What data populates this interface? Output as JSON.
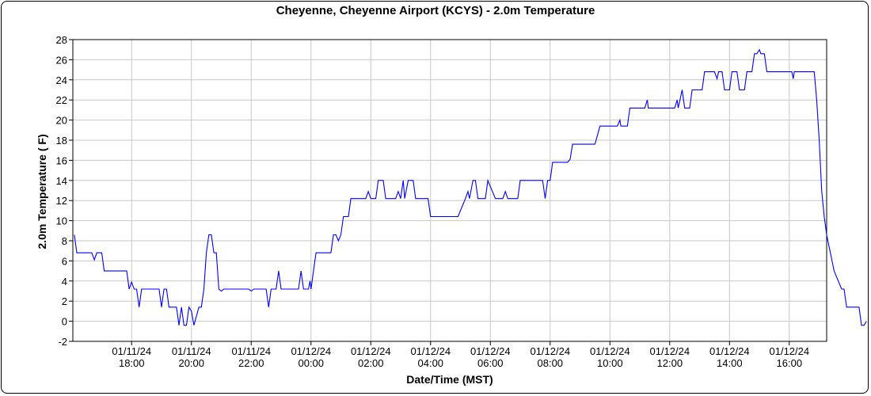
{
  "chart_data": {
    "type": "line",
    "title": "Cheyenne, Cheyenne Airport (KCYS) - 2.0m Temperature",
    "xlabel": "Date/Time (MST)",
    "ylabel": "2.0m Temperature ( F)",
    "ylim": [
      -2,
      28
    ],
    "yticks": [
      -2,
      0,
      2,
      4,
      6,
      8,
      10,
      12,
      14,
      16,
      18,
      20,
      22,
      24,
      26,
      28
    ],
    "xlim": [
      "01/11/24 16:02",
      "01/12/24 17:15"
    ],
    "xticks": [
      {
        "date": "01/11/24",
        "time": "18:00",
        "at": "01/11/24 18:00"
      },
      {
        "date": "01/11/24",
        "time": "20:00",
        "at": "01/11/24 20:00"
      },
      {
        "date": "01/11/24",
        "time": "22:00",
        "at": "01/11/24 22:00"
      },
      {
        "date": "01/12/24",
        "time": "00:00",
        "at": "01/12/24 00:00"
      },
      {
        "date": "01/12/24",
        "time": "02:00",
        "at": "01/12/24 02:00"
      },
      {
        "date": "01/12/24",
        "time": "04:00",
        "at": "01/12/24 04:00"
      },
      {
        "date": "01/12/24",
        "time": "06:00",
        "at": "01/12/24 06:00"
      },
      {
        "date": "01/12/24",
        "time": "08:00",
        "at": "01/12/24 08:00"
      },
      {
        "date": "01/12/24",
        "time": "10:00",
        "at": "01/12/24 10:00"
      },
      {
        "date": "01/12/24",
        "time": "12:00",
        "at": "01/12/24 12:00"
      },
      {
        "date": "01/12/24",
        "time": "14:00",
        "at": "01/12/24 14:00"
      },
      {
        "date": "01/12/24",
        "time": "16:00",
        "at": "01/12/24 16:00"
      }
    ],
    "grid": true,
    "color": "#0000ff",
    "series": [
      {
        "points": [
          [
            "01/11/24 16:05",
            8.6
          ],
          [
            "01/11/24 16:10",
            6.8
          ],
          [
            "01/11/24 16:40",
            6.8
          ],
          [
            "01/11/24 16:45",
            6.1
          ],
          [
            "01/11/24 16:50",
            6.8
          ],
          [
            "01/11/24 17:00",
            6.8
          ],
          [
            "01/11/24 17:05",
            5.0
          ],
          [
            "01/11/24 17:50",
            5.0
          ],
          [
            "01/11/24 17:55",
            3.2
          ],
          [
            "01/11/24 18:00",
            3.9
          ],
          [
            "01/11/24 18:05",
            3.2
          ],
          [
            "01/11/24 18:10",
            3.2
          ],
          [
            "01/11/24 18:15",
            1.4
          ],
          [
            "01/11/24 18:20",
            3.2
          ],
          [
            "01/11/24 18:55",
            3.2
          ],
          [
            "01/11/24 19:00",
            1.4
          ],
          [
            "01/11/24 19:05",
            3.2
          ],
          [
            "01/11/24 19:10",
            3.2
          ],
          [
            "01/11/24 19:15",
            1.4
          ],
          [
            "01/11/24 19:30",
            1.4
          ],
          [
            "01/11/24 19:35",
            -0.4
          ],
          [
            "01/11/24 19:40",
            1.4
          ],
          [
            "01/11/24 19:45",
            -0.4
          ],
          [
            "01/11/24 19:50",
            -0.4
          ],
          [
            "01/11/24 19:55",
            1.4
          ],
          [
            "01/11/24 20:00",
            1.0
          ],
          [
            "01/11/24 20:05",
            -0.4
          ],
          [
            "01/11/24 20:15",
            1.4
          ],
          [
            "01/11/24 20:20",
            1.4
          ],
          [
            "01/11/24 20:25",
            3.2
          ],
          [
            "01/11/24 20:30",
            6.8
          ],
          [
            "01/11/24 20:35",
            8.6
          ],
          [
            "01/11/24 20:40",
            8.6
          ],
          [
            "01/11/24 20:45",
            6.8
          ],
          [
            "01/11/24 20:50",
            6.8
          ],
          [
            "01/11/24 20:55",
            3.2
          ],
          [
            "01/11/24 21:00",
            3.0
          ],
          [
            "01/11/24 21:05",
            3.2
          ],
          [
            "01/11/24 21:55",
            3.2
          ],
          [
            "01/11/24 22:00",
            3.0
          ],
          [
            "01/11/24 22:05",
            3.2
          ],
          [
            "01/11/24 22:30",
            3.2
          ],
          [
            "01/11/24 22:35",
            1.4
          ],
          [
            "01/11/24 22:40",
            3.2
          ],
          [
            "01/11/24 22:50",
            3.2
          ],
          [
            "01/11/24 22:55",
            5.0
          ],
          [
            "01/11/24 23:00",
            3.2
          ],
          [
            "01/11/24 23:35",
            3.2
          ],
          [
            "01/11/24 23:40",
            5.0
          ],
          [
            "01/11/24 23:45",
            3.2
          ],
          [
            "01/11/24 23:55",
            3.2
          ],
          [
            "01/11/24 23:58",
            4.0
          ],
          [
            "01/12/24 00:00",
            3.2
          ],
          [
            "01/12/24 00:05",
            5.0
          ],
          [
            "01/12/24 00:10",
            6.8
          ],
          [
            "01/12/24 00:40",
            6.8
          ],
          [
            "01/12/24 00:45",
            8.6
          ],
          [
            "01/12/24 00:50",
            8.6
          ],
          [
            "01/12/24 00:55",
            8.0
          ],
          [
            "01/12/24 01:00",
            8.6
          ],
          [
            "01/12/24 01:05",
            10.4
          ],
          [
            "01/12/24 01:15",
            10.4
          ],
          [
            "01/12/24 01:20",
            12.2
          ],
          [
            "01/12/24 01:50",
            12.2
          ],
          [
            "01/12/24 01:55",
            12.9
          ],
          [
            "01/12/24 02:00",
            12.2
          ],
          [
            "01/12/24 02:10",
            12.2
          ],
          [
            "01/12/24 02:15",
            14.0
          ],
          [
            "01/12/24 02:25",
            14.0
          ],
          [
            "01/12/24 02:30",
            12.2
          ],
          [
            "01/12/24 02:50",
            12.2
          ],
          [
            "01/12/24 02:55",
            12.9
          ],
          [
            "01/12/24 03:00",
            12.2
          ],
          [
            "01/12/24 03:05",
            14.0
          ],
          [
            "01/12/24 03:08",
            12.2
          ],
          [
            "01/12/24 03:15",
            14.0
          ],
          [
            "01/12/24 03:25",
            14.0
          ],
          [
            "01/12/24 03:30",
            12.2
          ],
          [
            "01/12/24 03:55",
            12.2
          ],
          [
            "01/12/24 04:00",
            10.4
          ],
          [
            "01/12/24 04:55",
            10.4
          ],
          [
            "01/12/24 05:10",
            12.2
          ],
          [
            "01/12/24 05:15",
            12.9
          ],
          [
            "01/12/24 05:18",
            12.2
          ],
          [
            "01/12/24 05:25",
            14.0
          ],
          [
            "01/12/24 05:30",
            14.0
          ],
          [
            "01/12/24 05:35",
            12.2
          ],
          [
            "01/12/24 05:50",
            12.2
          ],
          [
            "01/12/24 05:55",
            14.0
          ],
          [
            "01/12/24 06:10",
            12.2
          ],
          [
            "01/12/24 06:25",
            12.2
          ],
          [
            "01/12/24 06:30",
            12.9
          ],
          [
            "01/12/24 06:35",
            12.2
          ],
          [
            "01/12/24 06:55",
            12.2
          ],
          [
            "01/12/24 07:00",
            14.0
          ],
          [
            "01/12/24 07:45",
            14.0
          ],
          [
            "01/12/24 07:50",
            12.2
          ],
          [
            "01/12/24 07:55",
            14.0
          ],
          [
            "01/12/24 08:00",
            14.0
          ],
          [
            "01/12/24 08:05",
            15.8
          ],
          [
            "01/12/24 08:35",
            15.8
          ],
          [
            "01/12/24 08:40",
            16.1
          ],
          [
            "01/12/24 08:45",
            17.6
          ],
          [
            "01/12/24 09:30",
            17.6
          ],
          [
            "01/12/24 09:40",
            19.4
          ],
          [
            "01/12/24 10:15",
            19.4
          ],
          [
            "01/12/24 10:20",
            20.0
          ],
          [
            "01/12/24 10:22",
            19.4
          ],
          [
            "01/12/24 10:35",
            19.4
          ],
          [
            "01/12/24 10:40",
            21.2
          ],
          [
            "01/12/24 11:10",
            21.2
          ],
          [
            "01/12/24 11:15",
            22.0
          ],
          [
            "01/12/24 11:17",
            21.2
          ],
          [
            "01/12/24 12:10",
            21.2
          ],
          [
            "01/12/24 12:15",
            22.0
          ],
          [
            "01/12/24 12:17",
            21.2
          ],
          [
            "01/12/24 12:25",
            23.0
          ],
          [
            "01/12/24 12:30",
            21.2
          ],
          [
            "01/12/24 12:40",
            21.2
          ],
          [
            "01/12/24 12:45",
            23.0
          ],
          [
            "01/12/24 13:05",
            23.0
          ],
          [
            "01/12/24 13:10",
            24.8
          ],
          [
            "01/12/24 13:30",
            24.8
          ],
          [
            "01/12/24 13:35",
            24.1
          ],
          [
            "01/12/24 13:38",
            24.8
          ],
          [
            "01/12/24 13:45",
            24.8
          ],
          [
            "01/12/24 13:50",
            23.0
          ],
          [
            "01/12/24 14:00",
            23.0
          ],
          [
            "01/12/24 14:05",
            24.8
          ],
          [
            "01/12/24 14:15",
            24.8
          ],
          [
            "01/12/24 14:20",
            23.0
          ],
          [
            "01/12/24 14:30",
            23.0
          ],
          [
            "01/12/24 14:35",
            24.8
          ],
          [
            "01/12/24 14:45",
            24.8
          ],
          [
            "01/12/24 14:50",
            26.6
          ],
          [
            "01/12/24 14:55",
            26.6
          ],
          [
            "01/12/24 15:00",
            27.0
          ],
          [
            "01/12/24 15:03",
            26.6
          ],
          [
            "01/12/24 15:10",
            26.6
          ],
          [
            "01/12/24 15:15",
            24.8
          ],
          [
            "01/12/24 16:05",
            24.8
          ],
          [
            "01/12/24 16:08",
            24.1
          ],
          [
            "01/12/24 16:10",
            24.8
          ],
          [
            "01/12/24 16:50",
            24.8
          ],
          [
            "01/12/24 16:55",
            22.0
          ],
          [
            "01/12/24 17:00",
            18.0
          ],
          [
            "01/12/24 17:05",
            13.0
          ],
          [
            "01/12/24 17:10",
            10.4
          ],
          [
            "01/12/24 17:15",
            8.6
          ],
          [
            "01/12/24 17:30",
            5.0
          ],
          [
            "01/12/24 17:45",
            3.2
          ],
          [
            "01/12/24 17:50",
            3.2
          ],
          [
            "01/12/24 17:55",
            1.4
          ],
          [
            "01/12/24 18:20",
            1.4
          ],
          [
            "01/12/24 18:25",
            -0.4
          ],
          [
            "01/12/24 18:30",
            -0.4
          ],
          [
            "01/12/24 18:35",
            0.0
          ]
        ]
      }
    ]
  }
}
